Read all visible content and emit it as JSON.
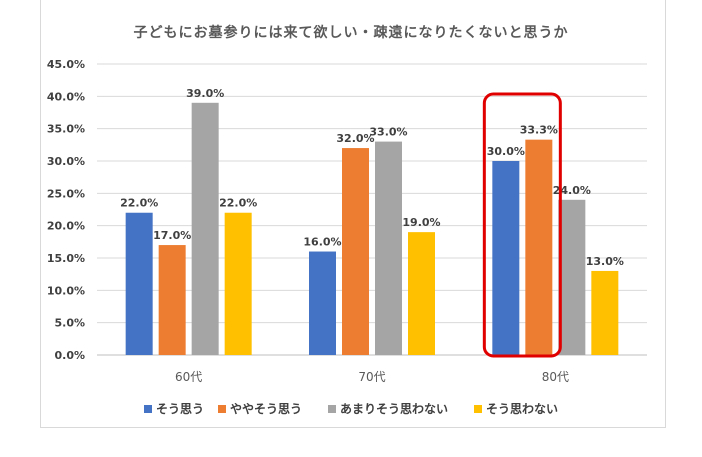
{
  "chart_data": {
    "type": "bar",
    "title": "子どもにお墓参りには来て欲しい・疎遠になりたくないと思うか",
    "categories": [
      "60代",
      "70代",
      "80代"
    ],
    "series": [
      {
        "name": "そう思う",
        "color": "#4472c4",
        "values": [
          22.0,
          16.0,
          30.0
        ],
        "labels": [
          "22.0%",
          "16.0%",
          "30.0%"
        ]
      },
      {
        "name": "ややそう思う",
        "color": "#ed7d31",
        "values": [
          17.0,
          32.0,
          33.3
        ],
        "labels": [
          "17.0%",
          "32.0%",
          "33.3%"
        ]
      },
      {
        "name": "あまりそう思わない",
        "color": "#a5a5a5",
        "values": [
          39.0,
          33.0,
          24.0
        ],
        "labels": [
          "39.0%",
          "33.0%",
          "24.0%"
        ]
      },
      {
        "name": "そう思わない",
        "color": "#ffc000",
        "values": [
          22.0,
          19.0,
          13.0
        ],
        "labels": [
          "22.0%",
          "19.0%",
          "13.0%"
        ]
      }
    ],
    "yticks": [
      "0.0%",
      "5.0%",
      "10.0%",
      "15.0%",
      "20.0%",
      "25.0%",
      "30.0%",
      "35.0%",
      "40.0%",
      "45.0%"
    ],
    "ylim": [
      0,
      45
    ],
    "grid": true,
    "legend": "bottom",
    "highlight": {
      "category": "80代",
      "series": [
        "そう思う",
        "ややそう思う"
      ],
      "color": "#e00000"
    }
  }
}
